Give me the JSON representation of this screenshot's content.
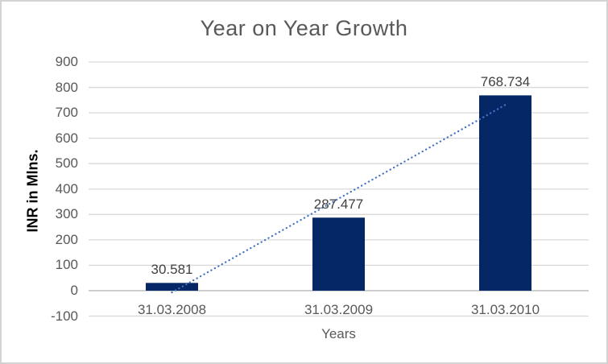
{
  "chart_data": {
    "type": "bar",
    "title": "Year on Year Growth",
    "xlabel": "Years",
    "ylabel": "INR in Mlns.",
    "categories": [
      "31.03.2008",
      "31.03.2009",
      "31.03.2010"
    ],
    "values": [
      30.581,
      287.477,
      768.734
    ],
    "data_labels": [
      "30.581",
      "287.477",
      "768.734"
    ],
    "ylim": [
      -100,
      900
    ],
    "ytick_step": 100,
    "grid": true,
    "legend": "none",
    "trendline": {
      "type": "linear",
      "style": "dotted"
    },
    "colors": {
      "bar": "#052765",
      "trendline": "#4472C4",
      "gridline": "#D9D9D9",
      "axis_line": "#BFBFBF",
      "tick_text": "#595959",
      "title_text": "#595959",
      "data_label_text": "#404040",
      "border": "#D3D3D3",
      "background": "#FFFFFF"
    }
  }
}
